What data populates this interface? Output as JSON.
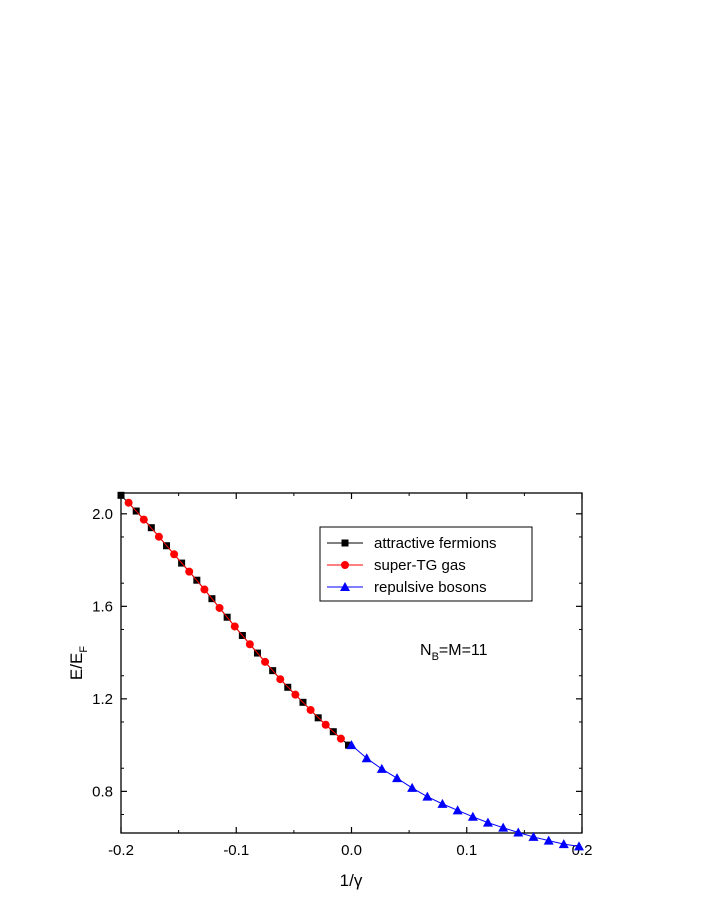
{
  "chart_data": {
    "type": "line",
    "title": "",
    "xlabel": "1/γ",
    "ylabel": "E/E_F",
    "ylabel_main": "E/E",
    "ylabel_sub": "F",
    "xlim": [
      -0.2,
      0.2
    ],
    "ylim": [
      0.62,
      2.09
    ],
    "xticks": [
      -0.2,
      -0.1,
      0.0,
      0.1,
      0.2
    ],
    "xtick_labels": [
      "-0.2",
      "-0.1",
      "0.0",
      "0.1",
      "0.2"
    ],
    "yticks": [
      0.8,
      1.2,
      1.6,
      2.0
    ],
    "ytick_labels": [
      "0.8",
      "1.2",
      "1.6",
      "2.0"
    ],
    "grid": false,
    "legend_position": "top-right",
    "annotation": {
      "main": "N",
      "sub": "B",
      "rest": "=M=11"
    },
    "series": [
      {
        "name": "attractive fermions",
        "color": "#000000",
        "marker": "square",
        "x": [
          -0.2,
          -0.1868,
          -0.1737,
          -0.1605,
          -0.1474,
          -0.1342,
          -0.1211,
          -0.1079,
          -0.0947,
          -0.0816,
          -0.0684,
          -0.0553,
          -0.0421,
          -0.0289,
          -0.0158,
          -0.0026
        ],
        "y": [
          2.08,
          2.012,
          1.94,
          1.862,
          1.787,
          1.713,
          1.633,
          1.553,
          1.474,
          1.398,
          1.322,
          1.25,
          1.185,
          1.118,
          1.058,
          1.0
        ]
      },
      {
        "name": "super-TG gas",
        "color": "#ff0000",
        "marker": "circle",
        "x": [
          -0.1934,
          -0.1802,
          -0.1671,
          -0.1539,
          -0.1408,
          -0.1276,
          -0.1145,
          -0.1013,
          -0.0882,
          -0.075,
          -0.0618,
          -0.0487,
          -0.0355,
          -0.0224,
          -0.0092
        ],
        "y": [
          2.048,
          1.975,
          1.901,
          1.825,
          1.75,
          1.673,
          1.593,
          1.513,
          1.436,
          1.36,
          1.285,
          1.218,
          1.152,
          1.088,
          1.028
        ]
      },
      {
        "name": "repulsive bosons",
        "color": "#0000ff",
        "marker": "triangle",
        "x": [
          0.0,
          0.0132,
          0.0263,
          0.0395,
          0.0526,
          0.0658,
          0.0789,
          0.0921,
          0.1053,
          0.1184,
          0.1316,
          0.1447,
          0.1579,
          0.1711,
          0.1842,
          0.1974
        ],
        "y": [
          1.0,
          0.943,
          0.897,
          0.857,
          0.815,
          0.777,
          0.746,
          0.718,
          0.69,
          0.665,
          0.643,
          0.622,
          0.603,
          0.587,
          0.572,
          0.562
        ]
      }
    ]
  }
}
